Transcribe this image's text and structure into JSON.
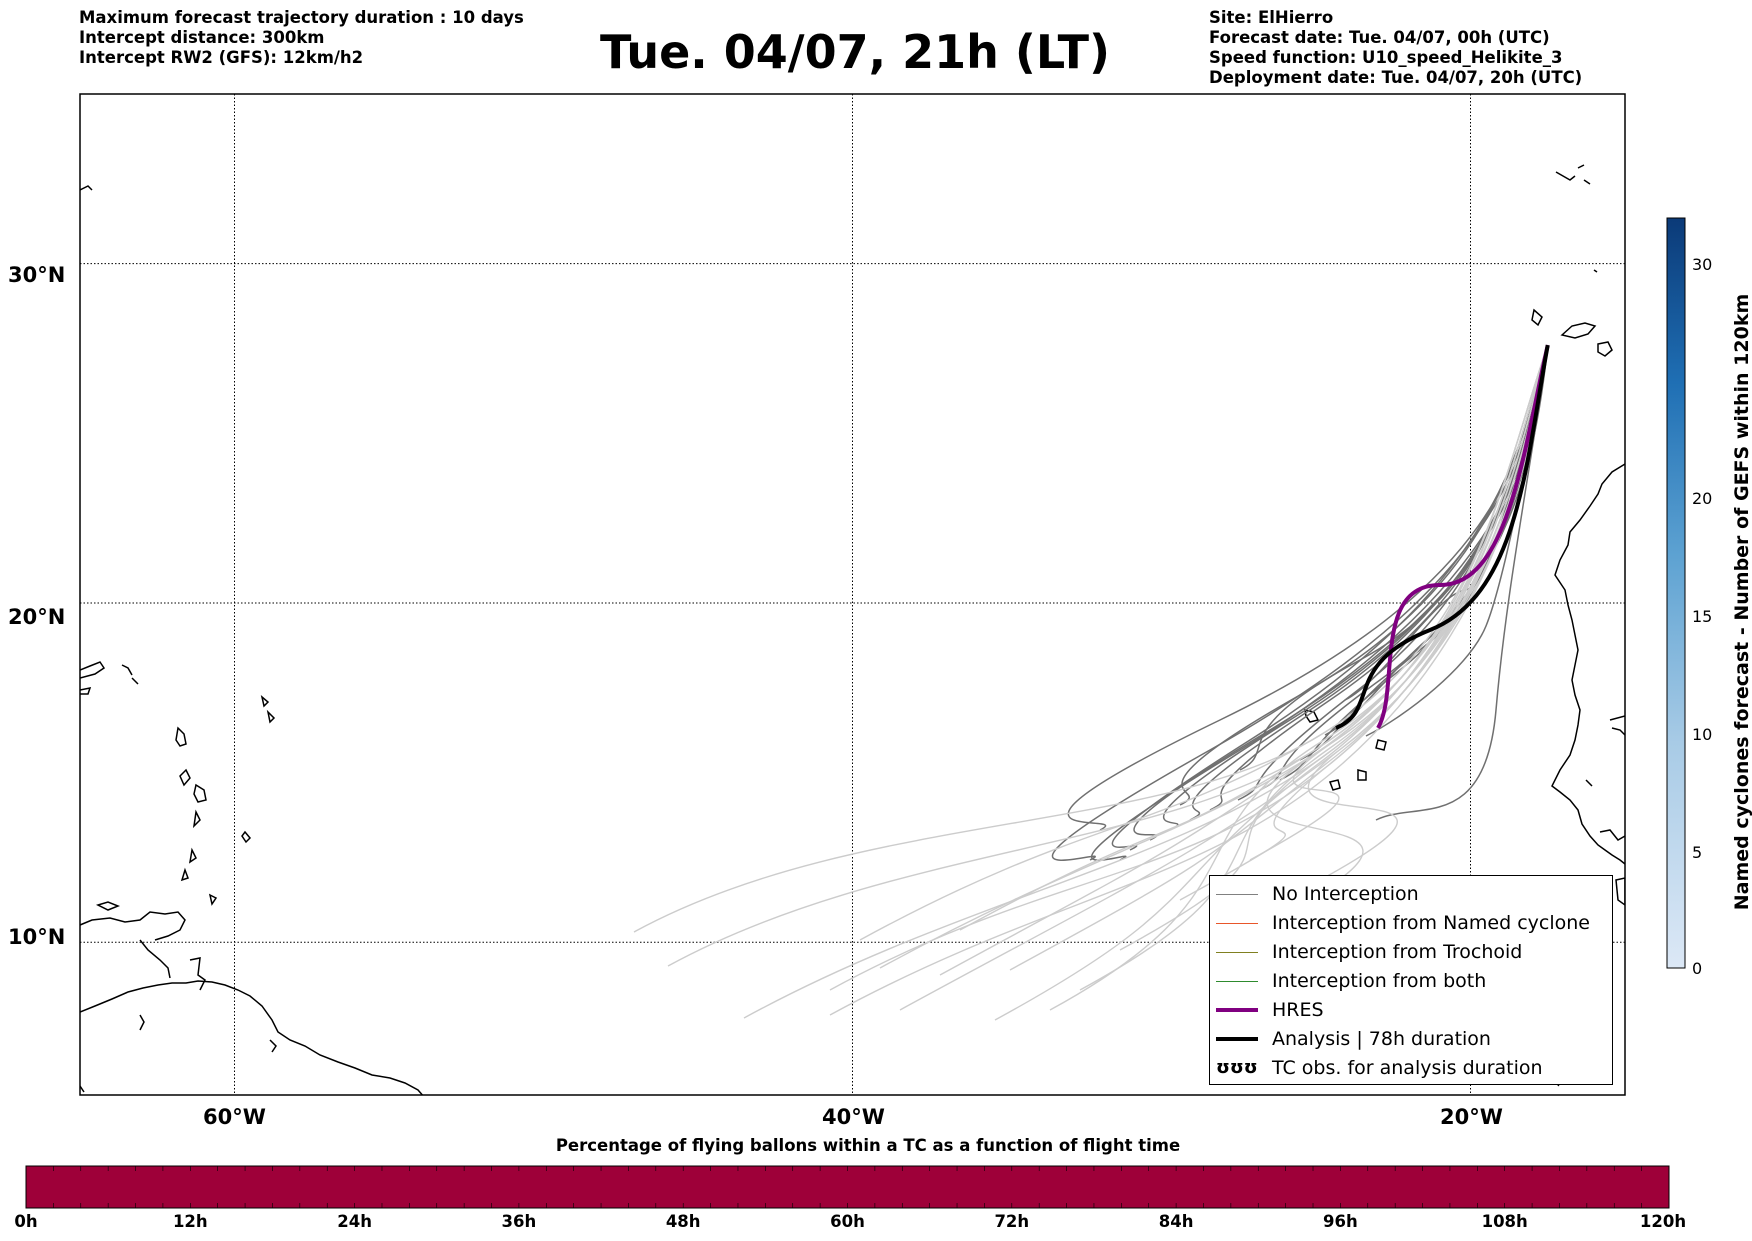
{
  "header_left": [
    "Maximum forecast trajectory duration : 10 days",
    "Intercept distance: 300km",
    "Intercept RW2 (GFS):  12km/h2"
  ],
  "title": "Tue. 04/07, 21h (LT)",
  "header_right": [
    "Site: ElHierro",
    "Forecast date: Tue. 04/07, 00h (UTC)",
    "Speed function: U10_speed_Helikite_3",
    "Deployment date: Tue. 04/07, 20h (UTC)"
  ],
  "map": {
    "lon_range": [
      -65,
      -15
    ],
    "lat_range": [
      5.5,
      35
    ],
    "lat_ticks": [
      {
        "value": 30,
        "label": "30°N"
      },
      {
        "value": 20,
        "label": "20°N"
      },
      {
        "value": 10,
        "label": "10°N"
      }
    ],
    "lon_ticks": [
      {
        "value": -60,
        "label": "60°W"
      },
      {
        "value": -40,
        "label": "40°W"
      },
      {
        "value": -20,
        "label": "20°W"
      }
    ],
    "launch_site": {
      "lon": -17.5,
      "lat": 27.6
    },
    "colors": {
      "no_interception_far": "#cccccc",
      "no_interception_near": "#707070",
      "hres": "#800080",
      "analysis": "#000000"
    }
  },
  "legend": [
    {
      "label": "No Interception",
      "color": "#808080",
      "width": 1.5
    },
    {
      "label": "Interception from Named cyclone",
      "color": "#e8562a",
      "width": 1.5
    },
    {
      "label": "Interception from Trochoid",
      "color": "#808020",
      "width": 1.5
    },
    {
      "label": "Interception from both",
      "color": "#2e8b2e",
      "width": 1.5
    },
    {
      "label": "HRES",
      "color": "#800080",
      "width": 4
    },
    {
      "label": "Analysis | 78h duration",
      "color": "#000000",
      "width": 4
    },
    {
      "label": "TC obs. for analysis duration",
      "glyph": "ʊʊʊ"
    }
  ],
  "colorbar": {
    "label": "Named cyclones forecast - Number of GEFS within 120km",
    "ticks": [
      0,
      5,
      10,
      15,
      20,
      30
    ],
    "max": 32
  },
  "bottom_bar": {
    "title": "Percentage of flying ballons within a TC as a function of flight time",
    "ticks": [
      "0h",
      "12h",
      "24h",
      "36h",
      "48h",
      "60h",
      "72h",
      "84h",
      "96h",
      "108h",
      "120h"
    ],
    "fill_color": "#9e0039"
  }
}
